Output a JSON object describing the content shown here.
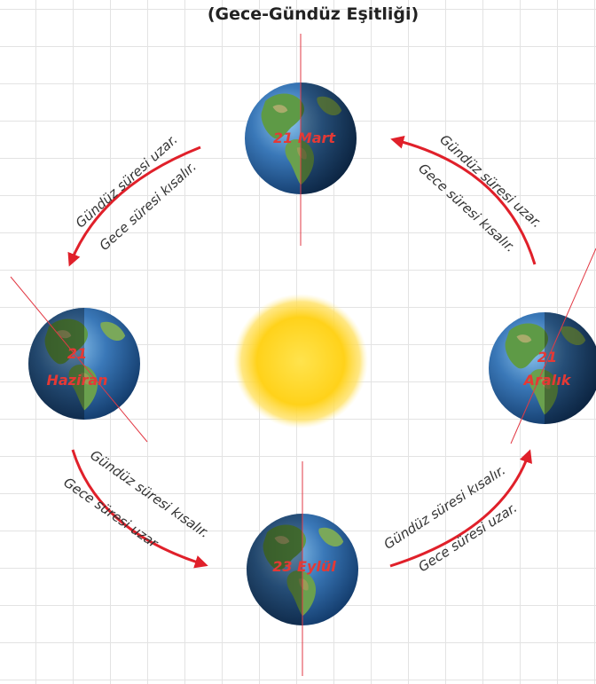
{
  "title": "(Gece-Gündüz Eşitliği)",
  "colors": {
    "accent": "#e0202a",
    "date_label": "#e53935",
    "axis": "#e23a45",
    "sun": "#ffd21a"
  },
  "positions": {
    "mart": {
      "label_lines": [
        "21 Mart"
      ]
    },
    "haziran": {
      "label_lines": [
        "21",
        "Haziran"
      ]
    },
    "aralik": {
      "label_lines": [
        "21",
        "Aralık"
      ]
    },
    "eylul": {
      "label_lines": [
        "23 Eylül"
      ]
    }
  },
  "arcs": {
    "top_left": {
      "line1": "Gündüz süresi uzar.",
      "line2": "Gece süresi kısalır."
    },
    "top_right": {
      "line1": "Gündüz süresi uzar.",
      "line2": "Gece süresi kısalır."
    },
    "bottom_left": {
      "line1": "Gündüz süresi kısalır.",
      "line2": "Gece süresi uzar"
    },
    "bottom_right": {
      "line1": "Gündüz süresi kısalır.",
      "line2": "Gece süresi uzar."
    }
  }
}
